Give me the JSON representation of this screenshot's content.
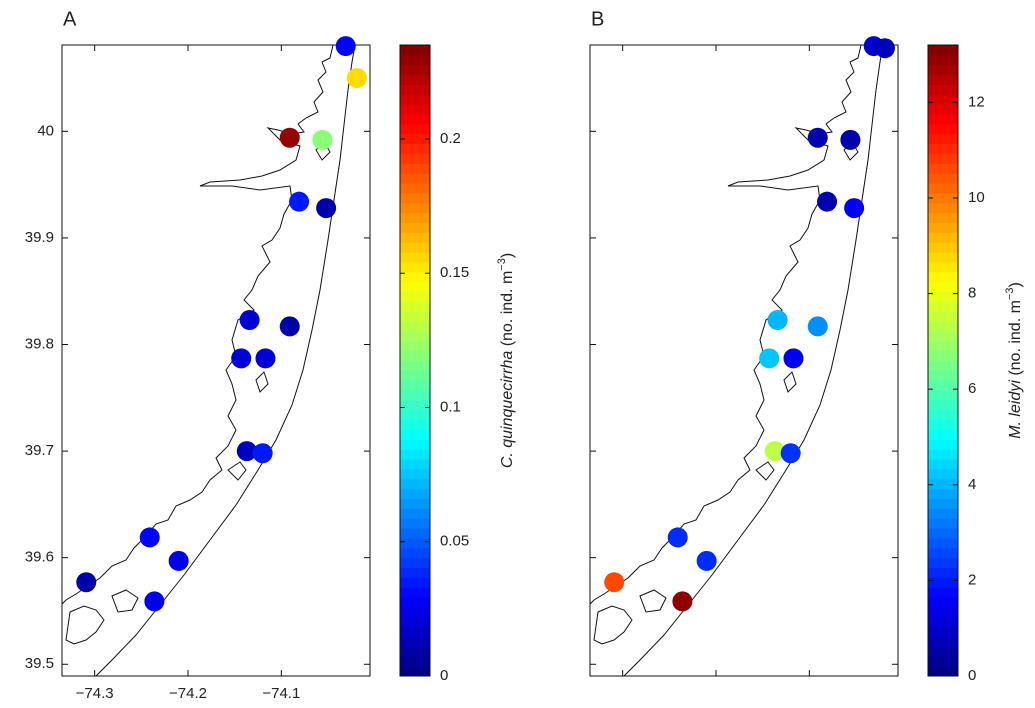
{
  "chart_data": [
    {
      "type": "scatter",
      "panel_label": "A",
      "x": [
        -74.031,
        -74.019,
        -74.091,
        -74.056,
        -74.081,
        -74.052,
        -74.134,
        -74.091,
        -74.143,
        -74.117,
        -74.137,
        -74.12,
        -74.241,
        -74.21,
        -74.309,
        -74.236
      ],
      "y": [
        40.08,
        40.05,
        39.994,
        39.992,
        39.934,
        39.928,
        39.823,
        39.817,
        39.787,
        39.787,
        39.7,
        39.698,
        39.619,
        39.597,
        39.577,
        39.559
      ],
      "values": [
        0.03,
        0.155,
        0.23,
        0.12,
        0.035,
        0.01,
        0.02,
        0.01,
        0.02,
        0.02,
        0.015,
        0.035,
        0.03,
        0.025,
        0.01,
        0.025
      ],
      "xlim": [
        -74.335,
        -74.005
      ],
      "ylim": [
        39.489,
        40.081
      ],
      "xticks": [
        {
          "value": -74.3,
          "label": "−74.3"
        },
        {
          "value": -74.2,
          "label": "−74.2"
        },
        {
          "value": -74.1,
          "label": "−74.1"
        }
      ],
      "yticks": [
        39.5,
        39.6,
        39.7,
        39.8,
        39.9,
        40
      ],
      "tick_labels": true,
      "colormap": "jet",
      "clim": [
        0,
        0.235
      ],
      "cticks": [
        0,
        0.05,
        0.1,
        0.15,
        0.2
      ],
      "colorbar_label": {
        "species": "C. quinquecirrha",
        "unit": " (no. ind. m",
        "exponent": "−3",
        "close": ")"
      }
    },
    {
      "type": "scatter",
      "panel_label": "B",
      "x": [
        -74.031,
        -74.019,
        -74.091,
        -74.056,
        -74.081,
        -74.052,
        -74.134,
        -74.091,
        -74.143,
        -74.117,
        -74.137,
        -74.12,
        -74.241,
        -74.21,
        -74.309,
        -74.236
      ],
      "y": [
        40.08,
        40.078,
        39.994,
        39.992,
        39.934,
        39.928,
        39.823,
        39.817,
        39.787,
        39.787,
        39.7,
        39.698,
        39.619,
        39.597,
        39.577,
        39.559
      ],
      "values": [
        1.0,
        0.8,
        0.6,
        0.6,
        0.6,
        1.6,
        4.0,
        3.5,
        4.2,
        1.5,
        7.4,
        2.3,
        2.2,
        2.2,
        10.6,
        13.0
      ],
      "xlim": [
        -74.335,
        -74.005
      ],
      "ylim": [
        39.489,
        40.081
      ],
      "xticks": [
        -74.3,
        -74.2,
        -74.1
      ],
      "yticks": [
        39.5,
        39.6,
        39.7,
        39.8,
        39.9,
        40
      ],
      "tick_labels": false,
      "colormap": "jet",
      "clim": [
        0,
        13.2
      ],
      "cticks": [
        0,
        2,
        4,
        6,
        8,
        10,
        12
      ],
      "colorbar_label": {
        "species": "M. leidyi",
        "unit": " (no. ind. m",
        "exponent": "−3",
        "close": ")"
      }
    }
  ]
}
